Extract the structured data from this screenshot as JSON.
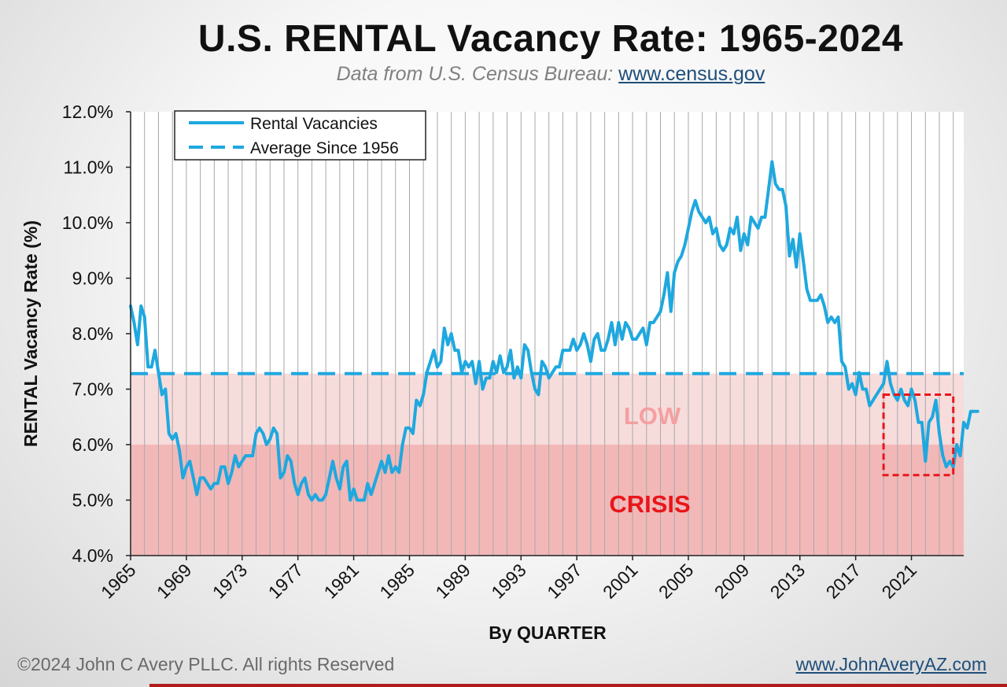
{
  "title": "U.S. RENTAL Vacancy Rate: 1965-2024",
  "subtitle": {
    "prefix": "Data from U.S. Census Bureau: ",
    "link": "www.census.gov"
  },
  "footer": {
    "copyright": "©2024 John C Avery PLLC. All rights Reserved",
    "website": "www.JohnAveryAZ.com"
  },
  "colors": {
    "series": "#1ea8df",
    "crisis_band": "#f2b8b8",
    "low_band": "#f7dcdc",
    "low_label": "#f4a0a0",
    "crisis_label": "#e8161b",
    "highlight_box": "#e8161b"
  },
  "chart_data": {
    "type": "line",
    "xlabel": "By QUARTER",
    "ylabel": "RENTAL Vacancy Rate (%)",
    "ylim": [
      4.0,
      12.0
    ],
    "x_range": [
      1965,
      2024.75
    ],
    "y_ticks": [
      "4.0%",
      "5.0%",
      "6.0%",
      "7.0%",
      "8.0%",
      "9.0%",
      "10.0%",
      "11.0%",
      "12.0%"
    ],
    "x_ticks": [
      "1965",
      "1969",
      "1973",
      "1977",
      "1981",
      "1985",
      "1989",
      "1993",
      "1997",
      "2001",
      "2005",
      "2009",
      "2013",
      "2017",
      "2021"
    ],
    "legend": {
      "position": "top-left",
      "entries": [
        "Rental Vacancies",
        "Average Since 1956"
      ]
    },
    "average_since_1956": 7.28,
    "bands": [
      {
        "label": "CRISIS",
        "from": 4.0,
        "to": 6.0
      },
      {
        "label": "LOW",
        "from": 6.0,
        "to": 7.28
      }
    ],
    "highlight": {
      "x_from": 2019.0,
      "x_to": 2024.0,
      "y_from": 5.45,
      "y_to": 6.9
    },
    "series": [
      {
        "name": "Rental Vacancies",
        "start": 1965.0,
        "step": 0.25,
        "values": [
          8.5,
          8.2,
          7.8,
          8.5,
          8.3,
          7.4,
          7.4,
          7.7,
          7.3,
          6.9,
          7.0,
          6.2,
          6.1,
          6.2,
          5.9,
          5.4,
          5.6,
          5.7,
          5.4,
          5.1,
          5.4,
          5.4,
          5.3,
          5.2,
          5.3,
          5.3,
          5.6,
          5.6,
          5.3,
          5.5,
          5.8,
          5.6,
          5.7,
          5.8,
          5.8,
          5.8,
          6.2,
          6.3,
          6.2,
          6.0,
          6.1,
          6.3,
          6.2,
          5.4,
          5.5,
          5.8,
          5.7,
          5.3,
          5.1,
          5.3,
          5.4,
          5.1,
          5.0,
          5.1,
          5.0,
          5.0,
          5.1,
          5.4,
          5.7,
          5.4,
          5.2,
          5.6,
          5.7,
          5.0,
          5.2,
          5.0,
          5.0,
          5.0,
          5.3,
          5.1,
          5.3,
          5.5,
          5.7,
          5.5,
          5.8,
          5.5,
          5.6,
          5.5,
          6.0,
          6.3,
          6.3,
          6.2,
          6.8,
          6.7,
          6.9,
          7.3,
          7.5,
          7.7,
          7.4,
          7.5,
          8.1,
          7.8,
          8.0,
          7.7,
          7.7,
          7.3,
          7.5,
          7.4,
          7.5,
          7.1,
          7.5,
          7.0,
          7.2,
          7.2,
          7.5,
          7.3,
          7.6,
          7.3,
          7.4,
          7.7,
          7.2,
          7.4,
          7.2,
          7.8,
          7.7,
          7.3,
          7.0,
          6.9,
          7.5,
          7.4,
          7.2,
          7.3,
          7.4,
          7.4,
          7.7,
          7.7,
          7.7,
          7.9,
          7.7,
          7.8,
          8.0,
          7.8,
          7.5,
          7.9,
          8.0,
          7.7,
          7.7,
          7.9,
          8.2,
          7.8,
          8.2,
          7.9,
          8.2,
          8.1,
          7.9,
          7.9,
          8.0,
          8.1,
          7.8,
          8.2,
          8.2,
          8.3,
          8.4,
          8.7,
          9.1,
          8.4,
          9.1,
          9.3,
          9.4,
          9.6,
          9.9,
          10.2,
          10.4,
          10.2,
          10.1,
          10.0,
          10.1,
          9.8,
          9.9,
          9.6,
          9.5,
          9.6,
          9.9,
          9.8,
          10.1,
          9.5,
          9.8,
          9.6,
          10.1,
          10.0,
          9.9,
          10.1,
          10.1,
          10.6,
          11.1,
          10.7,
          10.6,
          10.6,
          10.3,
          9.4,
          9.7,
          9.2,
          9.8,
          9.3,
          8.8,
          8.6,
          8.6,
          8.6,
          8.7,
          8.5,
          8.2,
          8.3,
          8.2,
          8.3,
          7.5,
          7.4,
          7.0,
          7.1,
          6.9,
          7.3,
          7.0,
          7.0,
          6.7,
          6.8,
          6.9,
          7.0,
          7.1,
          7.5,
          7.1,
          6.9,
          6.8,
          7.0,
          6.8,
          6.7,
          7.0,
          6.8,
          6.4,
          6.4,
          5.7,
          6.4,
          6.5,
          6.8,
          6.2,
          5.8,
          5.6,
          5.7,
          5.6,
          6.0,
          5.8,
          6.4,
          6.3,
          6.6,
          6.6,
          6.6
        ]
      }
    ]
  }
}
